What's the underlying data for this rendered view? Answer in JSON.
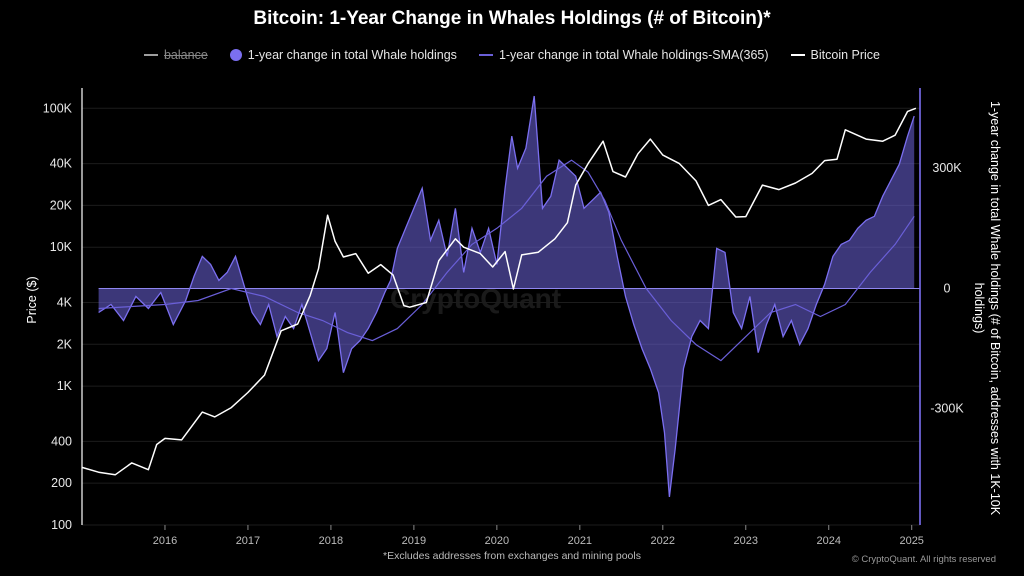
{
  "chart_data": {
    "type": "line",
    "title": "Bitcoin: 1-Year Change in Whales Holdings (# of Bitcoin)*",
    "ylabel_left": "Price ($)",
    "ylabel_right": "1-year change in total Whale holdings (# of Bitcoin, addresses with 1K-10K holdings)",
    "footnote": "*Excludes addresses from exchanges and mining pools",
    "copyright": "© CryptoQuant. All rights reserved",
    "watermark": "CryptoQuant",
    "legend": [
      {
        "label": "balance",
        "style": "line",
        "color": "#9e9e9e",
        "disabled": true
      },
      {
        "label": "1-year change in total Whale holdings",
        "style": "dot",
        "color": "#7b6ff0",
        "disabled": false
      },
      {
        "label": "1-year change in total Whale holdings-SMA(365)",
        "style": "line",
        "color": "#6a5fd8",
        "disabled": false
      },
      {
        "label": "Bitcoin Price",
        "style": "line",
        "color": "#ffffff",
        "disabled": false
      }
    ],
    "x_range": [
      2015.0,
      2025.1
    ],
    "x_ticks": [
      "2016",
      "2017",
      "2018",
      "2019",
      "2020",
      "2021",
      "2022",
      "2023",
      "2024",
      "2025"
    ],
    "y_left_scale": "log",
    "y_left_range": [
      100,
      140000
    ],
    "y_left_ticks": [
      {
        "value": 100000,
        "label": "100K"
      },
      {
        "value": 40000,
        "label": "40K"
      },
      {
        "value": 20000,
        "label": "20K"
      },
      {
        "value": 10000,
        "label": "10K"
      },
      {
        "value": 4000,
        "label": "4K"
      },
      {
        "value": 2000,
        "label": "2K"
      },
      {
        "value": 1000,
        "label": "1K"
      },
      {
        "value": 400,
        "label": "400"
      },
      {
        "value": 200,
        "label": "200"
      },
      {
        "value": 100,
        "label": "100"
      }
    ],
    "y_right_range": [
      -590000,
      500000
    ],
    "y_right_ticks": [
      {
        "value": 300000,
        "label": "300K"
      },
      {
        "value": 0,
        "label": "0"
      },
      {
        "value": -300000,
        "label": "-300K"
      }
    ],
    "series": [
      {
        "name": "Bitcoin Price",
        "color": "#ffffff",
        "x": [
          2015.0,
          2015.2,
          2015.4,
          2015.6,
          2015.8,
          2015.9,
          2016.0,
          2016.2,
          2016.45,
          2016.6,
          2016.8,
          2017.0,
          2017.2,
          2017.4,
          2017.6,
          2017.75,
          2017.85,
          2017.96,
          2018.05,
          2018.15,
          2018.3,
          2018.45,
          2018.6,
          2018.75,
          2018.88,
          2018.95,
          2019.15,
          2019.3,
          2019.5,
          2019.6,
          2019.8,
          2019.95,
          2020.1,
          2020.2,
          2020.3,
          2020.5,
          2020.7,
          2020.85,
          2020.95,
          2021.1,
          2021.28,
          2021.4,
          2021.55,
          2021.7,
          2021.85,
          2022.0,
          2022.2,
          2022.4,
          2022.55,
          2022.7,
          2022.88,
          2023.0,
          2023.2,
          2023.4,
          2023.6,
          2023.8,
          2023.95,
          2024.1,
          2024.2,
          2024.45,
          2024.65,
          2024.8,
          2024.95,
          2025.05
        ],
        "values": [
          260,
          240,
          230,
          280,
          250,
          380,
          420,
          410,
          650,
          600,
          700,
          900,
          1200,
          2500,
          2800,
          4500,
          7000,
          17000,
          11000,
          8500,
          9000,
          6500,
          7500,
          6300,
          3800,
          3700,
          4000,
          8000,
          11500,
          10000,
          9000,
          7200,
          9300,
          5000,
          8800,
          9200,
          11500,
          15000,
          28000,
          40000,
          58000,
          35000,
          32000,
          47000,
          60000,
          46000,
          40000,
          30000,
          20000,
          22000,
          16500,
          16600,
          28000,
          26000,
          29000,
          34000,
          42000,
          43000,
          70000,
          60000,
          58000,
          64000,
          95000,
          100000
        ]
      },
      {
        "name": "1-year change in total Whale holdings",
        "color": "#7b6ff0",
        "x": [
          2015.2,
          2015.35,
          2015.5,
          2015.65,
          2015.8,
          2015.95,
          2016.1,
          2016.25,
          2016.35,
          2016.45,
          2016.55,
          2016.65,
          2016.75,
          2016.85,
          2016.95,
          2017.05,
          2017.15,
          2017.25,
          2017.35,
          2017.45,
          2017.55,
          2017.65,
          2017.75,
          2017.85,
          2017.95,
          2018.05,
          2018.15,
          2018.25,
          2018.35,
          2018.45,
          2018.55,
          2018.65,
          2018.72,
          2018.8,
          2018.9,
          2019.0,
          2019.1,
          2019.2,
          2019.3,
          2019.4,
          2019.5,
          2019.6,
          2019.7,
          2019.8,
          2019.9,
          2020.0,
          2020.1,
          2020.18,
          2020.25,
          2020.35,
          2020.45,
          2020.55,
          2020.65,
          2020.75,
          2020.85,
          2020.95,
          2021.05,
          2021.15,
          2021.25,
          2021.35,
          2021.45,
          2021.55,
          2021.65,
          2021.75,
          2021.85,
          2021.95,
          2022.02,
          2022.08,
          2022.15,
          2022.25,
          2022.35,
          2022.45,
          2022.55,
          2022.65,
          2022.75,
          2022.85,
          2022.95,
          2023.05,
          2023.15,
          2023.25,
          2023.35,
          2023.45,
          2023.55,
          2023.65,
          2023.75,
          2023.85,
          2023.95,
          2024.05,
          2024.15,
          2024.25,
          2024.35,
          2024.45,
          2024.55,
          2024.65,
          2024.75,
          2024.85,
          2024.95,
          2025.03
        ],
        "values": [
          -60000,
          -40000,
          -80000,
          -20000,
          -50000,
          -10000,
          -90000,
          -30000,
          30000,
          80000,
          60000,
          20000,
          40000,
          80000,
          10000,
          -60000,
          -90000,
          -40000,
          -120000,
          -70000,
          -100000,
          -40000,
          -110000,
          -180000,
          -150000,
          -60000,
          -210000,
          -150000,
          -130000,
          -100000,
          -60000,
          -10000,
          20000,
          100000,
          150000,
          200000,
          250000,
          120000,
          170000,
          80000,
          200000,
          40000,
          150000,
          90000,
          150000,
          60000,
          250000,
          380000,
          300000,
          350000,
          480000,
          200000,
          230000,
          320000,
          300000,
          280000,
          200000,
          220000,
          240000,
          190000,
          80000,
          -20000,
          -90000,
          -150000,
          -200000,
          -260000,
          -360000,
          -520000,
          -400000,
          -200000,
          -120000,
          -80000,
          -100000,
          100000,
          90000,
          -60000,
          -100000,
          -20000,
          -160000,
          -90000,
          -40000,
          -120000,
          -80000,
          -140000,
          -100000,
          -40000,
          10000,
          80000,
          110000,
          120000,
          150000,
          170000,
          180000,
          230000,
          270000,
          310000,
          380000,
          430000
        ]
      },
      {
        "name": "1-year change in total Whale holdings-SMA(365)",
        "color": "#6a5fd8",
        "x": [
          2015.2,
          2015.6,
          2016.0,
          2016.4,
          2016.8,
          2017.2,
          2017.6,
          2017.9,
          2018.2,
          2018.5,
          2018.8,
          2019.1,
          2019.4,
          2019.7,
          2020.0,
          2020.3,
          2020.6,
          2020.9,
          2021.1,
          2021.3,
          2021.5,
          2021.8,
          2022.1,
          2022.4,
          2022.7,
          2023.0,
          2023.3,
          2023.6,
          2023.9,
          2024.2,
          2024.5,
          2024.8,
          2025.03
        ],
        "values": [
          -50000,
          -45000,
          -40000,
          -30000,
          0,
          -20000,
          -60000,
          -80000,
          -110000,
          -130000,
          -100000,
          -40000,
          40000,
          110000,
          150000,
          200000,
          280000,
          320000,
          290000,
          220000,
          120000,
          0,
          -80000,
          -140000,
          -180000,
          -120000,
          -60000,
          -40000,
          -70000,
          -40000,
          40000,
          110000,
          180000
        ]
      }
    ]
  }
}
